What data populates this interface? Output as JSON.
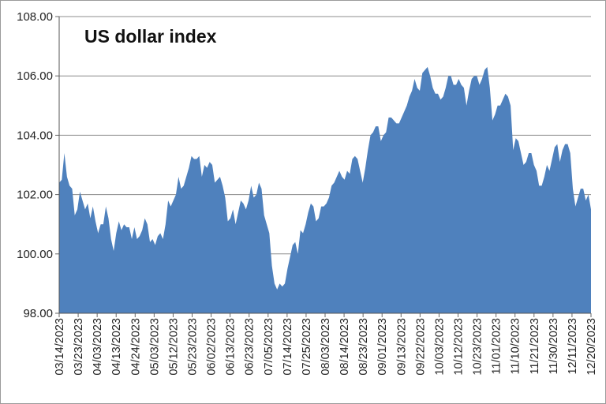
{
  "chart_data": {
    "type": "area",
    "title": "US dollar index",
    "xlabel": "",
    "ylabel": "",
    "ylim": [
      98,
      108
    ],
    "y_ticks": [
      "98.00",
      "100.00",
      "102.00",
      "104.00",
      "106.00",
      "108.00"
    ],
    "x_tick_labels": [
      "03/14/2023",
      "03/23/2023",
      "04/03/2023",
      "04/13/2023",
      "04/24/2023",
      "05/03/2023",
      "05/12/2023",
      "05/23/2023",
      "06/02/2023",
      "06/13/2023",
      "06/23/2023",
      "07/05/2023",
      "07/14/2023",
      "07/25/2023",
      "08/03/2023",
      "08/14/2023",
      "08/23/2023",
      "09/01/2023",
      "09/13/2023",
      "09/22/2023",
      "10/03/2023",
      "10/12/2023",
      "10/23/2023",
      "11/01/2023",
      "11/10/2023",
      "11/21/2023",
      "11/30/2023",
      "12/11/2023",
      "12/20/2023"
    ],
    "grid": true,
    "fill_color": "#4f81bd",
    "series": [
      {
        "values": [
          102.4,
          102.5,
          103.4,
          102.6,
          102.3,
          102.2,
          101.3,
          101.5,
          102.1,
          101.8,
          101.5,
          101.7,
          101.2,
          101.6,
          101.1,
          100.7,
          101.0,
          101.0,
          101.6,
          101.2,
          100.5,
          100.1,
          100.7,
          101.1,
          100.8,
          101.0,
          100.9,
          100.9,
          100.5,
          100.9,
          100.5,
          100.6,
          100.8,
          101.2,
          101.0,
          100.4,
          100.5,
          100.3,
          100.6,
          100.7,
          100.5,
          101.0,
          101.8,
          101.6,
          101.8,
          102.0,
          102.6,
          102.2,
          102.3,
          102.6,
          102.9,
          103.3,
          103.2,
          103.2,
          103.3,
          102.6,
          103.0,
          102.9,
          103.1,
          103.0,
          102.4,
          102.5,
          102.6,
          102.3,
          101.9,
          101.1,
          101.2,
          101.5,
          101.0,
          101.4,
          101.8,
          101.7,
          101.5,
          101.8,
          102.3,
          101.9,
          102.0,
          102.4,
          102.2,
          101.3,
          101.0,
          100.7,
          99.6,
          99.0,
          98.8,
          99.0,
          98.9,
          99.0,
          99.5,
          99.9,
          100.3,
          100.4,
          100.0,
          100.8,
          100.7,
          101.0,
          101.4,
          101.7,
          101.6,
          101.1,
          101.2,
          101.6,
          101.6,
          101.7,
          101.9,
          102.3,
          102.4,
          102.6,
          102.8,
          102.6,
          102.5,
          102.8,
          102.7,
          103.2,
          103.3,
          103.2,
          102.8,
          102.4,
          102.9,
          103.5,
          104.0,
          104.1,
          104.3,
          104.3,
          103.8,
          104.0,
          104.1,
          104.6,
          104.6,
          104.5,
          104.4,
          104.4,
          104.6,
          104.8,
          105.0,
          105.3,
          105.5,
          105.9,
          105.6,
          105.5,
          106.1,
          106.2,
          106.3,
          106.0,
          105.6,
          105.4,
          105.4,
          105.2,
          105.3,
          105.6,
          106.0,
          106.0,
          105.7,
          105.7,
          105.9,
          105.7,
          105.6,
          105.0,
          105.5,
          105.9,
          106.0,
          106.0,
          105.7,
          105.9,
          106.2,
          106.3,
          105.6,
          104.5,
          104.7,
          105.0,
          105.0,
          105.2,
          105.4,
          105.3,
          105.0,
          103.5,
          103.9,
          103.8,
          103.4,
          103.0,
          103.1,
          103.4,
          103.4,
          103.0,
          102.8,
          102.3,
          102.3,
          102.6,
          103.0,
          102.8,
          103.2,
          103.6,
          103.7,
          103.1,
          103.5,
          103.7,
          103.7,
          103.4,
          102.2,
          101.6,
          101.9,
          102.2,
          102.2,
          101.8,
          102.0,
          101.5
        ]
      }
    ]
  }
}
